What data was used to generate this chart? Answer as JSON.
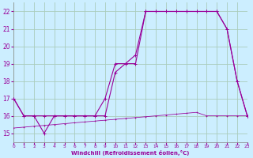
{
  "xlabel": "Windchill (Refroidissement éolien,°C)",
  "bg_color": "#cceeff",
  "grid_color": "#aaccbb",
  "line_color": "#990099",
  "x_min": 0,
  "x_max": 23,
  "y_min": 14.5,
  "y_max": 22.5,
  "series1_x": [
    0,
    1,
    2,
    3,
    4,
    5,
    6,
    7,
    8,
    9,
    10,
    11,
    12,
    13,
    14,
    15,
    16,
    17,
    18,
    19,
    20,
    21,
    22,
    23
  ],
  "series1_y": [
    17.0,
    16.0,
    16.0,
    15.0,
    16.0,
    16.0,
    16.0,
    16.0,
    16.0,
    17.0,
    19.0,
    19.0,
    19.0,
    22.0,
    22.0,
    22.0,
    22.0,
    22.0,
    22.0,
    22.0,
    22.0,
    21.0,
    18.0,
    16.0
  ],
  "series2_x": [
    0,
    1,
    2,
    3,
    4,
    5,
    6,
    7,
    8,
    9,
    10,
    11,
    12,
    13,
    14,
    15,
    16,
    17,
    18,
    19,
    20,
    21,
    22,
    23
  ],
  "series2_y": [
    17.0,
    16.0,
    16.0,
    16.0,
    16.0,
    16.0,
    16.0,
    16.0,
    16.0,
    16.0,
    18.5,
    19.0,
    19.5,
    22.0,
    22.0,
    22.0,
    22.0,
    22.0,
    22.0,
    22.0,
    22.0,
    21.0,
    18.0,
    16.0
  ],
  "series3_x": [
    0,
    1,
    2,
    3,
    4,
    5,
    6,
    7,
    8,
    9,
    10,
    11,
    12,
    13,
    14,
    15,
    16,
    17,
    18,
    19,
    20,
    21,
    22,
    23
  ],
  "series3_y": [
    15.3,
    15.35,
    15.4,
    15.45,
    15.5,
    15.55,
    15.6,
    15.65,
    15.7,
    15.75,
    15.8,
    15.85,
    15.9,
    15.95,
    16.0,
    16.05,
    16.1,
    16.15,
    16.2,
    16.0,
    16.0,
    16.0,
    16.0,
    16.0
  ],
  "yticks": [
    15,
    16,
    17,
    18,
    19,
    20,
    21,
    22
  ],
  "xticks": [
    0,
    1,
    2,
    3,
    4,
    5,
    6,
    7,
    8,
    9,
    10,
    11,
    12,
    13,
    14,
    15,
    16,
    17,
    18,
    19,
    20,
    21,
    22,
    23
  ]
}
